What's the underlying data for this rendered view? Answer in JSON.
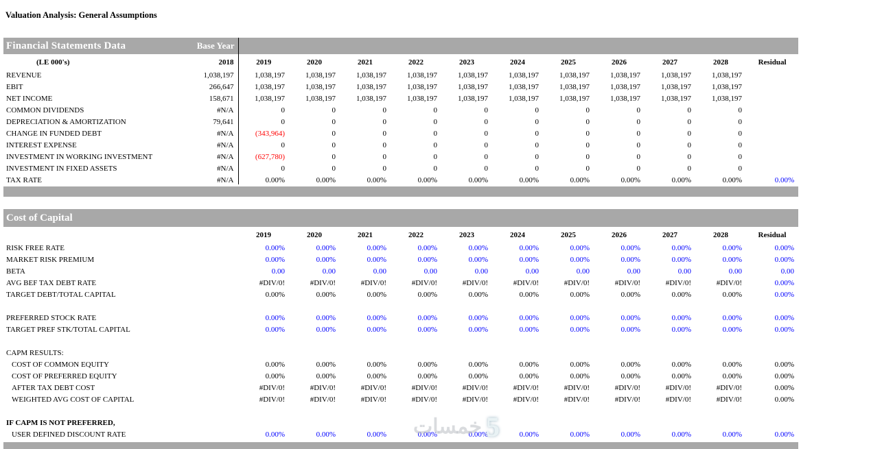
{
  "title": "Valuation Analysis: General Assumptions",
  "colors": {
    "header_bar": "#a8a8a8",
    "input_blue": "#0000ff",
    "negative_red": "#ff0000"
  },
  "years": [
    "2019",
    "2020",
    "2021",
    "2022",
    "2023",
    "2024",
    "2025",
    "2026",
    "2027",
    "2028",
    "Residual"
  ],
  "financial_statements": {
    "title": "Financial Statements Data",
    "base_year_label": "Base Year",
    "units_label": "(LE 000's)",
    "base_year": "2018",
    "rows": [
      {
        "label": "REVENUE",
        "base": "1,038,197",
        "values": [
          "1,038,197",
          "1,038,197",
          "1,038,197",
          "1,038,197",
          "1,038,197",
          "1,038,197",
          "1,038,197",
          "1,038,197",
          "1,038,197",
          "1,038,197",
          ""
        ]
      },
      {
        "label": "EBIT",
        "base": "266,647",
        "values": [
          "1,038,197",
          "1,038,197",
          "1,038,197",
          "1,038,197",
          "1,038,197",
          "1,038,197",
          "1,038,197",
          "1,038,197",
          "1,038,197",
          "1,038,197",
          ""
        ]
      },
      {
        "label": "NET INCOME",
        "base": "158,671",
        "values": [
          "1,038,197",
          "1,038,197",
          "1,038,197",
          "1,038,197",
          "1,038,197",
          "1,038,197",
          "1,038,197",
          "1,038,197",
          "1,038,197",
          "1,038,197",
          ""
        ]
      },
      {
        "label": "COMMON DIVIDENDS",
        "base": "#N/A",
        "values": [
          "0",
          "0",
          "0",
          "0",
          "0",
          "0",
          "0",
          "0",
          "0",
          "0",
          ""
        ]
      },
      {
        "label": "DEPRECIATION & AMORTIZATION",
        "base": "79,641",
        "values": [
          "0",
          "0",
          "0",
          "0",
          "0",
          "0",
          "0",
          "0",
          "0",
          "0",
          ""
        ]
      },
      {
        "label": "CHANGE IN FUNDED DEBT",
        "base": "#N/A",
        "values": [
          "(343,964)",
          "0",
          "0",
          "0",
          "0",
          "0",
          "0",
          "0",
          "0",
          "0",
          ""
        ],
        "overrides": {
          "0": "red"
        }
      },
      {
        "label": "INTEREST EXPENSE",
        "base": "#N/A",
        "values": [
          "0",
          "0",
          "0",
          "0",
          "0",
          "0",
          "0",
          "0",
          "0",
          "0",
          ""
        ]
      },
      {
        "label": "INVESTMENT IN WORKING INVESTMENT",
        "base": "#N/A",
        "values": [
          "(627,780)",
          "0",
          "0",
          "0",
          "0",
          "0",
          "0",
          "0",
          "0",
          "0",
          ""
        ],
        "overrides": {
          "0": "red"
        }
      },
      {
        "label": "INVESTMENT IN FIXED ASSETS",
        "base": "#N/A",
        "values": [
          "0",
          "0",
          "0",
          "0",
          "0",
          "0",
          "0",
          "0",
          "0",
          "0",
          ""
        ]
      },
      {
        "label": "TAX RATE",
        "base": "#N/A",
        "values": [
          "0.00%",
          "0.00%",
          "0.00%",
          "0.00%",
          "0.00%",
          "0.00%",
          "0.00%",
          "0.00%",
          "0.00%",
          "0.00%",
          "0.00%"
        ],
        "overrides": {
          "10": "blue"
        }
      }
    ]
  },
  "cost_of_capital": {
    "title": "Cost of Capital",
    "rows": [
      {
        "label": "RISK FREE RATE",
        "color": "blue",
        "values": [
          "0.00%",
          "0.00%",
          "0.00%",
          "0.00%",
          "0.00%",
          "0.00%",
          "0.00%",
          "0.00%",
          "0.00%",
          "0.00%",
          "0.00%"
        ]
      },
      {
        "label": "MARKET RISK PREMIUM",
        "color": "blue",
        "values": [
          "0.00%",
          "0.00%",
          "0.00%",
          "0.00%",
          "0.00%",
          "0.00%",
          "0.00%",
          "0.00%",
          "0.00%",
          "0.00%",
          "0.00%"
        ]
      },
      {
        "label": "BETA",
        "color": "blue",
        "values": [
          "0.00",
          "0.00",
          "0.00",
          "0.00",
          "0.00",
          "0.00",
          "0.00",
          "0.00",
          "0.00",
          "0.00",
          "0.00"
        ]
      },
      {
        "label": "AVG BEF TAX DEBT RATE",
        "values": [
          "#DIV/0!",
          "#DIV/0!",
          "#DIV/0!",
          "#DIV/0!",
          "#DIV/0!",
          "#DIV/0!",
          "#DIV/0!",
          "#DIV/0!",
          "#DIV/0!",
          "#DIV/0!",
          "0.00%"
        ],
        "overrides": {
          "10": "blue"
        }
      },
      {
        "label": "TARGET DEBT/TOTAL CAPITAL",
        "values": [
          "0.00%",
          "0.00%",
          "0.00%",
          "0.00%",
          "0.00%",
          "0.00%",
          "0.00%",
          "0.00%",
          "0.00%",
          "0.00%",
          "0.00%"
        ],
        "overrides": {
          "10": "blue"
        }
      },
      {
        "type": "blank"
      },
      {
        "label": "PREFERRED STOCK RATE",
        "color": "blue",
        "values": [
          "0.00%",
          "0.00%",
          "0.00%",
          "0.00%",
          "0.00%",
          "0.00%",
          "0.00%",
          "0.00%",
          "0.00%",
          "0.00%",
          "0.00%"
        ]
      },
      {
        "label": "TARGET PREF STK/TOTAL CAPITAL",
        "color": "blue",
        "values": [
          "0.00%",
          "0.00%",
          "0.00%",
          "0.00%",
          "0.00%",
          "0.00%",
          "0.00%",
          "0.00%",
          "0.00%",
          "0.00%",
          "0.00%"
        ]
      },
      {
        "type": "blank"
      },
      {
        "type": "heading",
        "label": "CAPM RESULTS:"
      },
      {
        "label": "COST OF COMMON EQUITY",
        "indent": true,
        "values": [
          "0.00%",
          "0.00%",
          "0.00%",
          "0.00%",
          "0.00%",
          "0.00%",
          "0.00%",
          "0.00%",
          "0.00%",
          "0.00%",
          "0.00%"
        ]
      },
      {
        "label": "COST OF PREFERRED EQUITY",
        "indent": true,
        "values": [
          "0.00%",
          "0.00%",
          "0.00%",
          "0.00%",
          "0.00%",
          "0.00%",
          "0.00%",
          "0.00%",
          "0.00%",
          "0.00%",
          "0.00%"
        ]
      },
      {
        "label": "AFTER TAX DEBT COST",
        "indent": true,
        "values": [
          "#DIV/0!",
          "#DIV/0!",
          "#DIV/0!",
          "#DIV/0!",
          "#DIV/0!",
          "#DIV/0!",
          "#DIV/0!",
          "#DIV/0!",
          "#DIV/0!",
          "#DIV/0!",
          "0.00%"
        ]
      },
      {
        "label": "WEIGHTED AVG COST OF CAPITAL",
        "indent": true,
        "values": [
          "#DIV/0!",
          "#DIV/0!",
          "#DIV/0!",
          "#DIV/0!",
          "#DIV/0!",
          "#DIV/0!",
          "#DIV/0!",
          "#DIV/0!",
          "#DIV/0!",
          "#DIV/0!",
          "0.00%"
        ]
      },
      {
        "type": "blank"
      },
      {
        "type": "heading",
        "label": "IF CAPM IS NOT PREFERRED,",
        "bold": true
      },
      {
        "label": "USER DEFINED DISCOUNT RATE",
        "indent": true,
        "color": "blue",
        "values": [
          "0.00%",
          "0.00%",
          "0.00%",
          "0.00%",
          "0.00%",
          "0.00%",
          "0.00%",
          "0.00%",
          "0.00%",
          "0.00%",
          "0.00%"
        ]
      }
    ]
  },
  "watermark": {
    "text": "خمسات",
    "number": "5"
  }
}
